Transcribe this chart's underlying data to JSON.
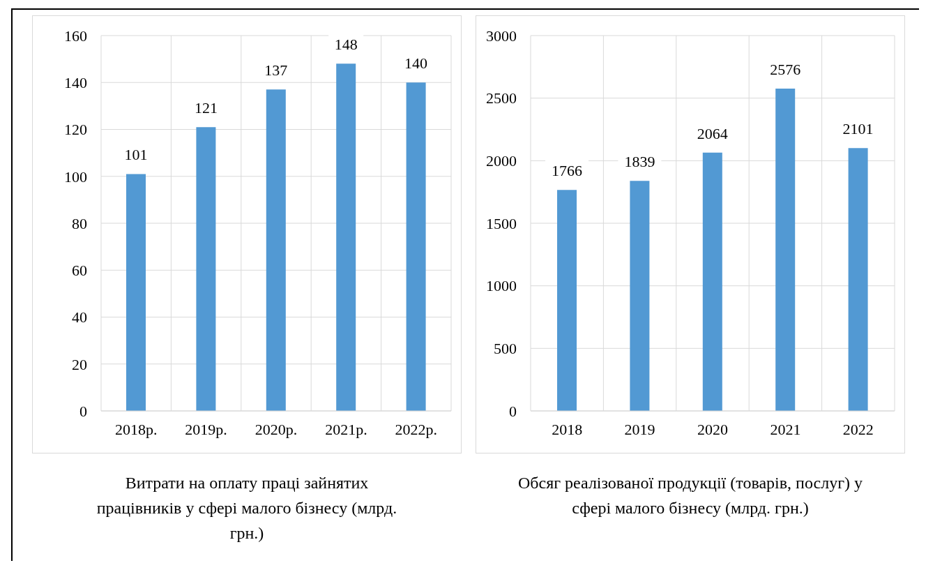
{
  "chart_data": [
    {
      "type": "bar",
      "title": "Витрати на оплату праці зайнятих працівників у сфері малого бізнесу (млрд. грн.)",
      "categories": [
        "2018р.",
        "2019р.",
        "2020р.",
        "2021р.",
        "2022р."
      ],
      "values": [
        101,
        121,
        137,
        148,
        140
      ],
      "color": "#5299d3",
      "ylim": [
        0,
        160
      ],
      "yticks": [
        0,
        20,
        40,
        60,
        80,
        100,
        120,
        140,
        160
      ],
      "grid": true,
      "data_labels": true
    },
    {
      "type": "bar",
      "title": "Обсяг реалізованої продукції (товарів, послуг) у сфері малого бізнесу (млрд. грн.)",
      "categories": [
        "2018",
        "2019",
        "2020",
        "2021",
        "2022"
      ],
      "values": [
        1766,
        1839,
        2064,
        2576,
        2101
      ],
      "color": "#5299d3",
      "ylim": [
        0,
        3000
      ],
      "yticks": [
        0,
        500,
        1000,
        1500,
        2000,
        2500,
        3000
      ],
      "grid": true,
      "data_labels": true
    }
  ]
}
